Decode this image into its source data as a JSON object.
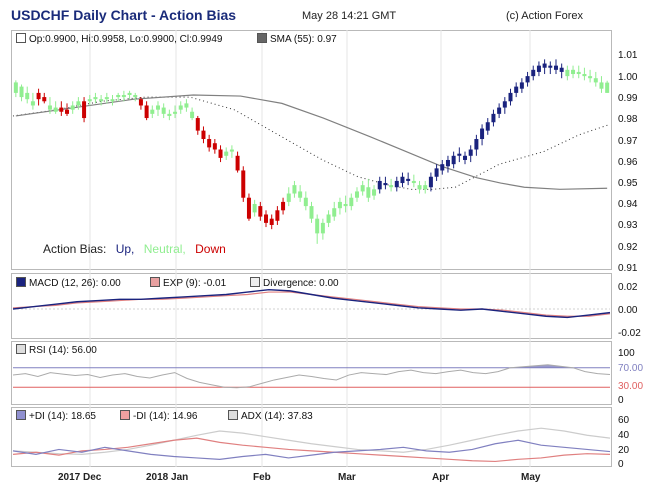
{
  "header": {
    "title": "USDCHF Daily Chart - Action Bias",
    "datetime": "May 28 14:21 GMT",
    "copyright": "(c) Action Forex"
  },
  "main_legend": {
    "ohlc": "Op:0.9900, Hi:0.9958, Lo:0.9900, Cl:0.9949",
    "sma": "SMA (55): 0.97"
  },
  "bias_legend": {
    "label": "Action Bias:",
    "up": "Up,",
    "neutral": "Neutral,",
    "down": "Down"
  },
  "colors": {
    "up": "#1a237e",
    "neutral": "#90ee90",
    "down": "#cc0000",
    "sma": "#808080",
    "macd": "#1a237e",
    "exp": "#e08080",
    "rsi": "#aaaaaa",
    "plus_di": "#8080c0",
    "minus_di": "#e08080",
    "adx": "#cccccc"
  },
  "x_axis": {
    "labels": [
      "2017 Dec",
      "2018 Jan",
      "Feb",
      "Mar",
      "Apr",
      "May"
    ]
  },
  "price_axis": {
    "labels": [
      "1.01",
      "1.00",
      "0.99",
      "0.98",
      "0.97",
      "0.96",
      "0.95",
      "0.94",
      "0.93",
      "0.92",
      "0.91"
    ]
  },
  "macd_panel": {
    "macd": "MACD (12, 26): 0.00",
    "exp": "EXP (9): -0.01",
    "div": "Divergence: 0.00",
    "axis": [
      "0.02",
      "0.00",
      "-0.02"
    ]
  },
  "rsi_panel": {
    "label": "RSI (14): 56.00",
    "axis": [
      "100",
      "70.00",
      "30.00",
      "0"
    ]
  },
  "adx_panel": {
    "plus_di": "+DI (14): 18.65",
    "minus_di": "-DI (14): 14.96",
    "adx": "ADX (14): 37.83",
    "axis": [
      "60",
      "40",
      "20",
      "0"
    ]
  },
  "chart_data": [
    {
      "type": "ohlc",
      "title": "USDCHF Daily Chart - Action Bias",
      "ylim": [
        0.91,
        1.015
      ],
      "bars": [
        {
          "o": 0.99,
          "h": 0.996,
          "l": 0.988,
          "c": 0.995,
          "b": "n"
        },
        {
          "o": 0.988,
          "h": 0.994,
          "l": 0.986,
          "c": 0.993,
          "b": "n"
        },
        {
          "o": 0.987,
          "h": 0.993,
          "l": 0.985,
          "c": 0.99,
          "b": "n"
        },
        {
          "o": 0.986,
          "h": 0.99,
          "l": 0.982,
          "c": 0.984,
          "b": "n"
        },
        {
          "o": 0.987,
          "h": 0.992,
          "l": 0.984,
          "c": 0.99,
          "b": "d"
        },
        {
          "o": 0.988,
          "h": 0.99,
          "l": 0.985,
          "c": 0.986,
          "b": "d"
        },
        {
          "o": 0.984,
          "h": 0.988,
          "l": 0.98,
          "c": 0.982,
          "b": "n"
        },
        {
          "o": 0.983,
          "h": 0.986,
          "l": 0.98,
          "c": 0.981,
          "b": "n"
        },
        {
          "o": 0.983,
          "h": 0.986,
          "l": 0.979,
          "c": 0.981,
          "b": "d"
        },
        {
          "o": 0.982,
          "h": 0.985,
          "l": 0.979,
          "c": 0.98,
          "b": "d"
        },
        {
          "o": 0.982,
          "h": 0.986,
          "l": 0.98,
          "c": 0.984,
          "b": "n"
        },
        {
          "o": 0.984,
          "h": 0.988,
          "l": 0.982,
          "c": 0.986,
          "b": "n"
        },
        {
          "o": 0.986,
          "h": 0.988,
          "l": 0.976,
          "c": 0.978,
          "b": "d"
        },
        {
          "o": 0.986,
          "h": 0.989,
          "l": 0.984,
          "c": 0.987,
          "b": "n"
        },
        {
          "o": 0.987,
          "h": 0.99,
          "l": 0.985,
          "c": 0.988,
          "b": "n"
        },
        {
          "o": 0.987,
          "h": 0.989,
          "l": 0.984,
          "c": 0.986,
          "b": "n"
        },
        {
          "o": 0.987,
          "h": 0.99,
          "l": 0.985,
          "c": 0.988,
          "b": "n"
        },
        {
          "o": 0.986,
          "h": 0.989,
          "l": 0.984,
          "c": 0.987,
          "b": "n"
        },
        {
          "o": 0.988,
          "h": 0.99,
          "l": 0.986,
          "c": 0.989,
          "b": "n"
        },
        {
          "o": 0.988,
          "h": 0.991,
          "l": 0.986,
          "c": 0.989,
          "b": "n"
        },
        {
          "o": 0.989,
          "h": 0.991,
          "l": 0.987,
          "c": 0.99,
          "b": "n"
        },
        {
          "o": 0.989,
          "h": 0.99,
          "l": 0.986,
          "c": 0.988,
          "b": "n"
        },
        {
          "o": 0.987,
          "h": 0.988,
          "l": 0.982,
          "c": 0.984,
          "b": "d"
        },
        {
          "o": 0.984,
          "h": 0.986,
          "l": 0.977,
          "c": 0.978,
          "b": "d"
        },
        {
          "o": 0.98,
          "h": 0.984,
          "l": 0.978,
          "c": 0.982,
          "b": "n"
        },
        {
          "o": 0.982,
          "h": 0.986,
          "l": 0.979,
          "c": 0.984,
          "b": "n"
        },
        {
          "o": 0.983,
          "h": 0.985,
          "l": 0.978,
          "c": 0.98,
          "b": "n"
        },
        {
          "o": 0.98,
          "h": 0.982,
          "l": 0.977,
          "c": 0.979,
          "b": "n"
        },
        {
          "o": 0.98,
          "h": 0.984,
          "l": 0.978,
          "c": 0.981,
          "b": "n"
        },
        {
          "o": 0.982,
          "h": 0.986,
          "l": 0.98,
          "c": 0.984,
          "b": "n"
        },
        {
          "o": 0.983,
          "h": 0.987,
          "l": 0.981,
          "c": 0.985,
          "b": "n"
        },
        {
          "o": 0.981,
          "h": 0.983,
          "l": 0.977,
          "c": 0.978,
          "b": "n"
        },
        {
          "o": 0.978,
          "h": 0.979,
          "l": 0.97,
          "c": 0.972,
          "b": "d"
        },
        {
          "o": 0.972,
          "h": 0.974,
          "l": 0.966,
          "c": 0.968,
          "b": "d"
        },
        {
          "o": 0.968,
          "h": 0.97,
          "l": 0.962,
          "c": 0.964,
          "b": "d"
        },
        {
          "o": 0.966,
          "h": 0.968,
          "l": 0.961,
          "c": 0.963,
          "b": "d"
        },
        {
          "o": 0.963,
          "h": 0.965,
          "l": 0.957,
          "c": 0.959,
          "b": "d"
        },
        {
          "o": 0.96,
          "h": 0.964,
          "l": 0.958,
          "c": 0.962,
          "b": "n"
        },
        {
          "o": 0.962,
          "h": 0.965,
          "l": 0.959,
          "c": 0.963,
          "b": "n"
        },
        {
          "o": 0.96,
          "h": 0.962,
          "l": 0.952,
          "c": 0.953,
          "b": "d"
        },
        {
          "o": 0.953,
          "h": 0.955,
          "l": 0.938,
          "c": 0.94,
          "b": "d"
        },
        {
          "o": 0.94,
          "h": 0.942,
          "l": 0.929,
          "c": 0.93,
          "b": "d"
        },
        {
          "o": 0.933,
          "h": 0.939,
          "l": 0.931,
          "c": 0.937,
          "b": "n"
        },
        {
          "o": 0.936,
          "h": 0.938,
          "l": 0.929,
          "c": 0.931,
          "b": "d"
        },
        {
          "o": 0.932,
          "h": 0.934,
          "l": 0.926,
          "c": 0.928,
          "b": "d"
        },
        {
          "o": 0.93,
          "h": 0.932,
          "l": 0.925,
          "c": 0.927,
          "b": "d"
        },
        {
          "o": 0.929,
          "h": 0.936,
          "l": 0.927,
          "c": 0.934,
          "b": "d"
        },
        {
          "o": 0.934,
          "h": 0.94,
          "l": 0.932,
          "c": 0.938,
          "b": "d"
        },
        {
          "o": 0.938,
          "h": 0.945,
          "l": 0.936,
          "c": 0.942,
          "b": "n"
        },
        {
          "o": 0.942,
          "h": 0.948,
          "l": 0.94,
          "c": 0.946,
          "b": "n"
        },
        {
          "o": 0.943,
          "h": 0.946,
          "l": 0.938,
          "c": 0.94,
          "b": "n"
        },
        {
          "o": 0.94,
          "h": 0.943,
          "l": 0.934,
          "c": 0.936,
          "b": "n"
        },
        {
          "o": 0.936,
          "h": 0.938,
          "l": 0.928,
          "c": 0.93,
          "b": "n"
        },
        {
          "o": 0.93,
          "h": 0.932,
          "l": 0.918,
          "c": 0.923,
          "b": "n"
        },
        {
          "o": 0.923,
          "h": 0.93,
          "l": 0.92,
          "c": 0.928,
          "b": "n"
        },
        {
          "o": 0.928,
          "h": 0.934,
          "l": 0.926,
          "c": 0.932,
          "b": "n"
        },
        {
          "o": 0.931,
          "h": 0.938,
          "l": 0.929,
          "c": 0.935,
          "b": "n"
        },
        {
          "o": 0.935,
          "h": 0.94,
          "l": 0.932,
          "c": 0.938,
          "b": "n"
        },
        {
          "o": 0.937,
          "h": 0.941,
          "l": 0.933,
          "c": 0.936,
          "b": "n"
        },
        {
          "o": 0.936,
          "h": 0.942,
          "l": 0.934,
          "c": 0.94,
          "b": "n"
        },
        {
          "o": 0.94,
          "h": 0.945,
          "l": 0.938,
          "c": 0.943,
          "b": "n"
        },
        {
          "o": 0.943,
          "h": 0.948,
          "l": 0.941,
          "c": 0.946,
          "b": "n"
        },
        {
          "o": 0.945,
          "h": 0.949,
          "l": 0.938,
          "c": 0.94,
          "b": "n"
        },
        {
          "o": 0.941,
          "h": 0.946,
          "l": 0.939,
          "c": 0.944,
          "b": "n"
        },
        {
          "o": 0.944,
          "h": 0.95,
          "l": 0.942,
          "c": 0.948,
          "b": "u"
        },
        {
          "o": 0.947,
          "h": 0.95,
          "l": 0.944,
          "c": 0.946,
          "b": "u"
        },
        {
          "o": 0.946,
          "h": 0.949,
          "l": 0.943,
          "c": 0.945,
          "b": "n"
        },
        {
          "o": 0.945,
          "h": 0.95,
          "l": 0.943,
          "c": 0.948,
          "b": "u"
        },
        {
          "o": 0.947,
          "h": 0.952,
          "l": 0.945,
          "c": 0.95,
          "b": "u"
        },
        {
          "o": 0.949,
          "h": 0.952,
          "l": 0.946,
          "c": 0.948,
          "b": "u"
        },
        {
          "o": 0.948,
          "h": 0.951,
          "l": 0.945,
          "c": 0.947,
          "b": "n"
        },
        {
          "o": 0.946,
          "h": 0.948,
          "l": 0.942,
          "c": 0.944,
          "b": "n"
        },
        {
          "o": 0.944,
          "h": 0.948,
          "l": 0.942,
          "c": 0.946,
          "b": "n"
        },
        {
          "o": 0.945,
          "h": 0.952,
          "l": 0.943,
          "c": 0.95,
          "b": "u"
        },
        {
          "o": 0.95,
          "h": 0.956,
          "l": 0.948,
          "c": 0.954,
          "b": "u"
        },
        {
          "o": 0.953,
          "h": 0.958,
          "l": 0.951,
          "c": 0.956,
          "b": "u"
        },
        {
          "o": 0.955,
          "h": 0.96,
          "l": 0.952,
          "c": 0.958,
          "b": "u"
        },
        {
          "o": 0.956,
          "h": 0.962,
          "l": 0.954,
          "c": 0.96,
          "b": "u"
        },
        {
          "o": 0.96,
          "h": 0.964,
          "l": 0.957,
          "c": 0.961,
          "b": "u"
        },
        {
          "o": 0.958,
          "h": 0.962,
          "l": 0.956,
          "c": 0.96,
          "b": "u"
        },
        {
          "o": 0.96,
          "h": 0.965,
          "l": 0.957,
          "c": 0.963,
          "b": "u"
        },
        {
          "o": 0.963,
          "h": 0.97,
          "l": 0.96,
          "c": 0.968,
          "b": "u"
        },
        {
          "o": 0.968,
          "h": 0.975,
          "l": 0.965,
          "c": 0.973,
          "b": "u"
        },
        {
          "o": 0.972,
          "h": 0.978,
          "l": 0.97,
          "c": 0.976,
          "b": "u"
        },
        {
          "o": 0.976,
          "h": 0.982,
          "l": 0.974,
          "c": 0.98,
          "b": "u"
        },
        {
          "o": 0.98,
          "h": 0.985,
          "l": 0.978,
          "c": 0.983,
          "b": "u"
        },
        {
          "o": 0.983,
          "h": 0.988,
          "l": 0.98,
          "c": 0.986,
          "b": "u"
        },
        {
          "o": 0.986,
          "h": 0.992,
          "l": 0.984,
          "c": 0.99,
          "b": "u"
        },
        {
          "o": 0.99,
          "h": 0.995,
          "l": 0.988,
          "c": 0.993,
          "b": "u"
        },
        {
          "o": 0.992,
          "h": 0.997,
          "l": 0.99,
          "c": 0.995,
          "b": "u"
        },
        {
          "o": 0.995,
          "h": 1.0,
          "l": 0.993,
          "c": 0.998,
          "b": "u"
        },
        {
          "o": 0.998,
          "h": 1.003,
          "l": 0.996,
          "c": 1.001,
          "b": "u"
        },
        {
          "o": 1.0,
          "h": 1.005,
          "l": 0.998,
          "c": 1.003,
          "b": "u"
        },
        {
          "o": 1.002,
          "h": 1.006,
          "l": 0.999,
          "c": 1.004,
          "b": "u"
        },
        {
          "o": 1.002,
          "h": 1.005,
          "l": 0.999,
          "c": 1.003,
          "b": "u"
        },
        {
          "o": 1.003,
          "h": 1.006,
          "l": 0.999,
          "c": 1.001,
          "b": "u"
        },
        {
          "o": 1.0,
          "h": 1.004,
          "l": 0.997,
          "c": 1.002,
          "b": "u"
        },
        {
          "o": 1.001,
          "h": 1.003,
          "l": 0.996,
          "c": 0.998,
          "b": "n"
        },
        {
          "o": 0.999,
          "h": 1.003,
          "l": 0.997,
          "c": 1.001,
          "b": "n"
        },
        {
          "o": 1.0,
          "h": 1.003,
          "l": 0.997,
          "c": 0.999,
          "b": "n"
        },
        {
          "o": 0.999,
          "h": 1.002,
          "l": 0.996,
          "c": 0.998,
          "b": "n"
        },
        {
          "o": 0.998,
          "h": 1.001,
          "l": 0.995,
          "c": 0.997,
          "b": "n"
        },
        {
          "o": 0.997,
          "h": 1.0,
          "l": 0.993,
          "c": 0.995,
          "b": "n"
        },
        {
          "o": 0.995,
          "h": 0.998,
          "l": 0.99,
          "c": 0.992,
          "b": "n"
        },
        {
          "o": 0.99,
          "h": 0.9958,
          "l": 0.99,
          "c": 0.9949,
          "b": "n"
        }
      ],
      "sma55": [
        [
          0,
          0.979
        ],
        [
          10,
          0.983
        ],
        [
          20,
          0.987
        ],
        [
          30,
          0.989
        ],
        [
          38,
          0.9885
        ],
        [
          45,
          0.985
        ],
        [
          52,
          0.978
        ],
        [
          60,
          0.969
        ],
        [
          66,
          0.962
        ],
        [
          72,
          0.955
        ],
        [
          78,
          0.9495
        ],
        [
          82,
          0.947
        ],
        [
          86,
          0.945
        ],
        [
          92,
          0.944
        ],
        [
          100,
          0.9445
        ]
      ],
      "bias_line": [
        [
          0,
          0.979
        ],
        [
          10,
          0.982
        ],
        [
          20,
          0.986
        ],
        [
          30,
          0.988
        ],
        [
          40,
          0.988
        ],
        [
          50,
          0.982
        ],
        [
          60,
          0.97
        ],
        [
          70,
          0.958
        ],
        [
          78,
          0.95
        ],
        [
          85,
          0.946
        ],
        [
          90,
          0.944
        ],
        [
          95,
          0.944
        ],
        [
          100,
          0.945
        ],
        [
          110,
          0.956
        ],
        [
          120,
          0.962
        ],
        [
          128,
          0.97
        ],
        [
          135,
          0.975
        ]
      ]
    }
  ]
}
